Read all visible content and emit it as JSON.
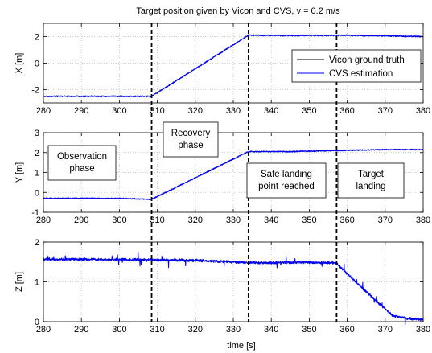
{
  "chart_data": {
    "type": "line",
    "title": "Target position given by Vicon and CVS, v = 0.2 m/s",
    "xlabel": "time [s]",
    "xlim": [
      280,
      380
    ],
    "xticks": [
      280,
      290,
      300,
      310,
      320,
      330,
      340,
      350,
      360,
      370,
      380
    ],
    "grid": true,
    "legend": {
      "placement": "right, inside top panel",
      "entries": [
        "Vicon ground truth",
        "CVS estimation"
      ]
    },
    "colors": {
      "vicon": "#000000",
      "cvs": "#0000ff",
      "phase_line": "#000000",
      "grid": "#bbbbbb"
    },
    "phase_boundaries": [
      308.5,
      334.0,
      357.2
    ],
    "annotations": [
      {
        "text": [
          "Recovery",
          "phase"
        ],
        "panel": 0
      },
      {
        "text": [
          "Observation",
          "phase"
        ],
        "panel": 1
      },
      {
        "text": [
          "Safe landing",
          "point reached"
        ],
        "panel": 1
      },
      {
        "text": [
          "Target",
          "landing"
        ],
        "panel": 1
      }
    ],
    "panels": [
      {
        "ylabel": "X [m]",
        "ylim": [
          -3,
          3
        ],
        "yticks": [
          -2,
          0,
          2
        ],
        "series": [
          {
            "name": "Vicon ground truth",
            "x": [
              280,
              308.5,
              334,
              345,
              360,
              370,
              380
            ],
            "y": [
              -2.5,
              -2.5,
              2.1,
              2.08,
              2.1,
              2.05,
              2.0
            ]
          },
          {
            "name": "CVS estimation",
            "x": [
              280,
              308.5,
              334,
              345,
              360,
              370,
              380
            ],
            "y": [
              -2.5,
              -2.5,
              2.1,
              2.08,
              2.1,
              2.05,
              2.0
            ]
          }
        ]
      },
      {
        "ylabel": "Y [m]",
        "ylim": [
          -1,
          3
        ],
        "yticks": [
          -1,
          0,
          1,
          2,
          3
        ],
        "series": [
          {
            "name": "Vicon ground truth",
            "x": [
              280,
              300,
              308.5,
              334,
              345,
              357,
              370,
              380
            ],
            "y": [
              -0.3,
              -0.3,
              -0.35,
              2.05,
              2.05,
              2.1,
              2.15,
              2.15
            ]
          },
          {
            "name": "CVS estimation",
            "x": [
              280,
              300,
              308.5,
              334,
              345,
              357,
              370,
              380
            ],
            "y": [
              -0.3,
              -0.3,
              -0.35,
              2.05,
              2.05,
              2.1,
              2.15,
              2.15
            ]
          }
        ]
      },
      {
        "ylabel": "Z [m]",
        "ylim": [
          0,
          2
        ],
        "yticks": [
          0,
          1,
          2
        ],
        "series": [
          {
            "name": "Vicon ground truth",
            "x": [
              280,
              300,
              320,
              334,
              350,
              357,
              365,
              372,
              376,
              380
            ],
            "y": [
              1.57,
              1.56,
              1.54,
              1.48,
              1.49,
              1.48,
              0.75,
              0.15,
              0.08,
              0.05
            ]
          },
          {
            "name": "CVS estimation",
            "x": [
              280,
              300,
              320,
              334,
              350,
              357,
              365,
              372,
              376,
              380
            ],
            "y": [
              1.57,
              1.56,
              1.54,
              1.48,
              1.49,
              1.48,
              0.75,
              0.15,
              0.08,
              0.05
            ]
          }
        ]
      }
    ]
  }
}
